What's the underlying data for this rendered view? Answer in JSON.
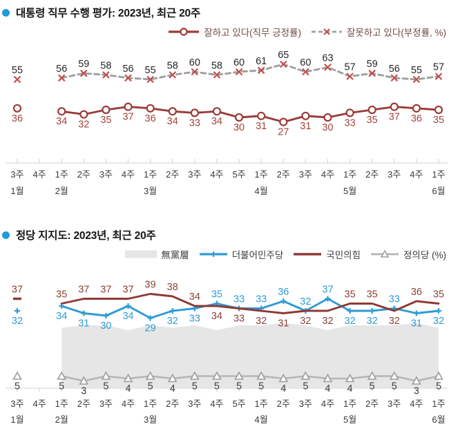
{
  "chart_data": [
    {
      "id": "presidential-approval",
      "type": "line",
      "title": "대통령 직무 수행 평가: 2023년, 최근 20주",
      "legend_position": "top-right",
      "x_weeks": [
        "3주",
        "4주",
        "1주",
        "2주",
        "3주",
        "4주",
        "1주",
        "2주",
        "3주",
        "4주",
        "5주",
        "1주",
        "2주",
        "3주",
        "4주",
        "1주",
        "2주",
        "3주",
        "4주",
        "1주"
      ],
      "x_months": [
        {
          "label": "1월",
          "week_index": 0
        },
        {
          "label": "2월",
          "week_index": 2
        },
        {
          "label": "3월",
          "week_index": 6
        },
        {
          "label": "4월",
          "week_index": 11
        },
        {
          "label": "5월",
          "week_index": 15
        },
        {
          "label": "6월",
          "week_index": 19
        }
      ],
      "gap_note": "no survey at 4주 1월",
      "series": [
        {
          "name": "잘하고 있다(직무 긍정률)",
          "type": "line",
          "line_style": "solid",
          "marker": "open-circle",
          "color": "#9a3b38",
          "label_color": "#a3423b",
          "values": [
            36,
            null,
            34,
            32,
            35,
            37,
            36,
            34,
            33,
            34,
            30,
            31,
            27,
            31,
            30,
            33,
            35,
            37,
            36,
            35
          ]
        },
        {
          "name": "잘못하고 있다(부정률, %)",
          "type": "line",
          "line_style": "dashed",
          "marker": "x",
          "color": "#9f9f9f",
          "marker_color": "#c0504d",
          "label_color": "#262626",
          "values": [
            55,
            null,
            56,
            59,
            58,
            56,
            55,
            58,
            60,
            58,
            60,
            61,
            65,
            60,
            63,
            57,
            59,
            56,
            55,
            57
          ]
        }
      ]
    },
    {
      "id": "party-support",
      "type": "line-area",
      "title": "정당 지지도: 2023년, 최근 20주",
      "legend_position": "top-right",
      "x_weeks": [
        "3주",
        "4주",
        "1주",
        "2주",
        "3주",
        "4주",
        "1주",
        "2주",
        "3주",
        "4주",
        "5주",
        "1주",
        "2주",
        "3주",
        "4주",
        "1주",
        "2주",
        "3주",
        "4주",
        "1주"
      ],
      "x_months": [
        {
          "label": "1월",
          "week_index": 0
        },
        {
          "label": "2월",
          "week_index": 2
        },
        {
          "label": "3월",
          "week_index": 6
        },
        {
          "label": "4월",
          "week_index": 11
        },
        {
          "label": "5월",
          "week_index": 15
        },
        {
          "label": "6월",
          "week_index": 19
        }
      ],
      "gap_note": "no survey at 4주 1월",
      "series": [
        {
          "name": "無黨層",
          "type": "area",
          "color": "#e6e6e6",
          "labels_shown": false,
          "values_estimated": true,
          "values": [
            null,
            null,
            25,
            26,
            26,
            24,
            26,
            25,
            26,
            24,
            26,
            26,
            27,
            26,
            24,
            26,
            26,
            26,
            27,
            25
          ]
        },
        {
          "name": "더불어민주당",
          "type": "line",
          "line_style": "solid",
          "marker": "plus",
          "color": "#2d9bd6",
          "label_color": "#2d9bd6",
          "values": [
            32,
            null,
            34,
            31,
            30,
            34,
            29,
            32,
            33,
            35,
            33,
            33,
            36,
            32,
            37,
            32,
            32,
            33,
            31,
            32
          ]
        },
        {
          "name": "국민의힘",
          "type": "line",
          "line_style": "solid",
          "marker": "dash-isolated",
          "color": "#8e3a34",
          "label_color": "#8c4037",
          "values": [
            37,
            null,
            35,
            37,
            37,
            37,
            39,
            38,
            34,
            34,
            33,
            32,
            31,
            32,
            32,
            35,
            35,
            32,
            36,
            35
          ]
        },
        {
          "name": "정의당 (%)",
          "type": "line",
          "line_style": "solid",
          "marker": "triangle",
          "color": "#b5b5b5",
          "label_color": "#3f3f3f",
          "values": [
            5,
            null,
            5,
            3,
            5,
            4,
            5,
            4,
            5,
            5,
            5,
            5,
            4,
            5,
            4,
            4,
            5,
            5,
            3,
            5
          ]
        }
      ]
    }
  ]
}
